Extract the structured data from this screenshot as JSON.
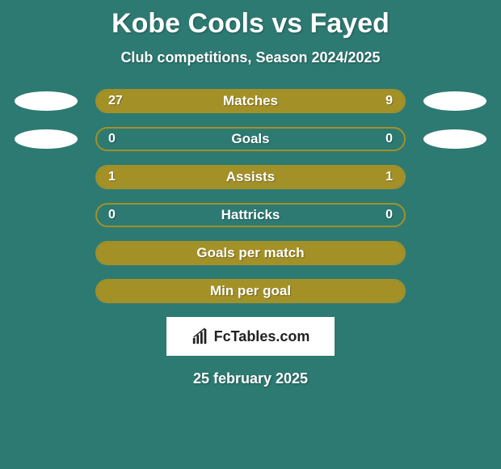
{
  "title": "Kobe Cools vs Fayed",
  "subtitle": "Club competitions, Season 2024/2025",
  "date": "25 february 2025",
  "logo_text": "FcTables.com",
  "colors": {
    "background": "#2d7a72",
    "bar_fill": "#a39128",
    "bar_border": "#a39128",
    "ellipse": "#ffffff",
    "text": "#ffffff",
    "logo_bg": "#ffffff",
    "logo_text": "#222222"
  },
  "stats": [
    {
      "label": "Matches",
      "left_value": "27",
      "right_value": "9",
      "left_percent": 75,
      "right_percent": 25,
      "show_ellipses": true
    },
    {
      "label": "Goals",
      "left_value": "0",
      "right_value": "0",
      "left_percent": 0,
      "right_percent": 0,
      "show_ellipses": true
    },
    {
      "label": "Assists",
      "left_value": "1",
      "right_value": "1",
      "left_percent": 50,
      "right_percent": 50,
      "show_ellipses": false
    },
    {
      "label": "Hattricks",
      "left_value": "0",
      "right_value": "0",
      "left_percent": 0,
      "right_percent": 0,
      "show_ellipses": false
    },
    {
      "label": "Goals per match",
      "left_value": "",
      "right_value": "",
      "left_percent": 100,
      "right_percent": 0,
      "full_fill": true,
      "show_ellipses": false
    },
    {
      "label": "Min per goal",
      "left_value": "",
      "right_value": "",
      "left_percent": 100,
      "right_percent": 0,
      "full_fill": true,
      "show_ellipses": false
    }
  ]
}
